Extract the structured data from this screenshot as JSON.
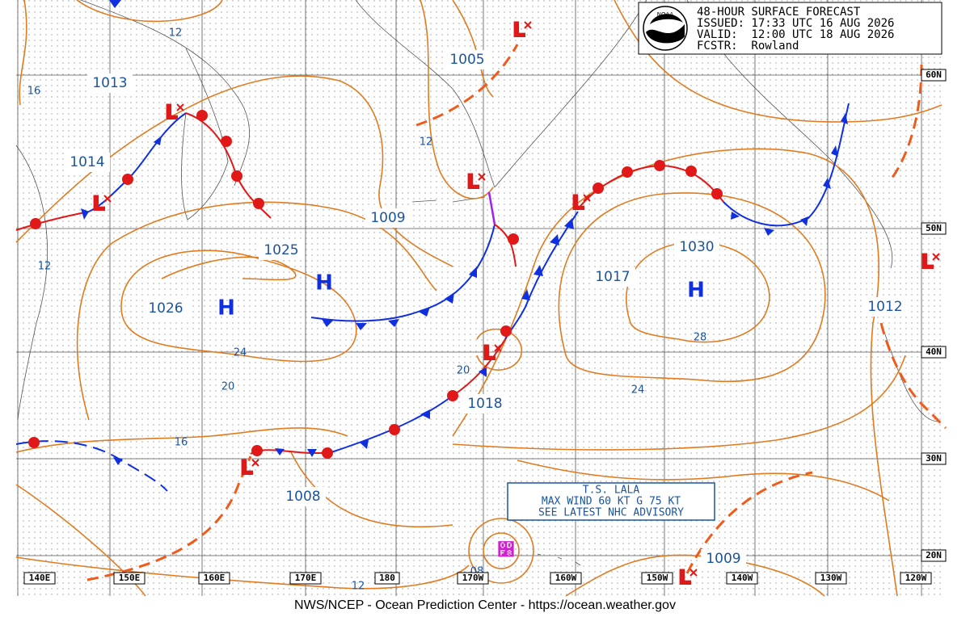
{
  "header": {
    "lines": [
      "48-HOUR SURFACE FORECAST",
      "ISSUED: 17:33 UTC 16 AUG 2026",
      "VALID:  12:00 UTC 18 AUG 2026",
      "FCSTR:  Rowland"
    ]
  },
  "logo_text": "NOAA",
  "pressure_labels": [
    "1013",
    "1014",
    "1025",
    "1026",
    "1009",
    "1005",
    "1017",
    "1030",
    "1012",
    "1018",
    "1008",
    "1009"
  ],
  "isobar_labels": [
    "12",
    "16",
    "12",
    "12",
    "24",
    "20",
    "16",
    "20",
    "24",
    "28",
    "12",
    "08"
  ],
  "highs": [
    "H",
    "H",
    "H"
  ],
  "lows": [
    "L",
    "L",
    "L",
    "L",
    "L",
    "L",
    "L",
    "L",
    "L"
  ],
  "latitudes": [
    "60N",
    "50N",
    "40N",
    "30N",
    "20N"
  ],
  "longitudes": [
    "140E",
    "150E",
    "160E",
    "170E",
    "180",
    "170W",
    "160W",
    "150W",
    "140W",
    "130W",
    "120W"
  ],
  "advisory": [
    "T.S. LALA",
    "MAX WIND 60 KT G 75 KT",
    "SEE LATEST NHC ADVISORY"
  ],
  "footer": "NWS/NCEP - Ocean Prediction Center - https://ocean.weather.gov"
}
